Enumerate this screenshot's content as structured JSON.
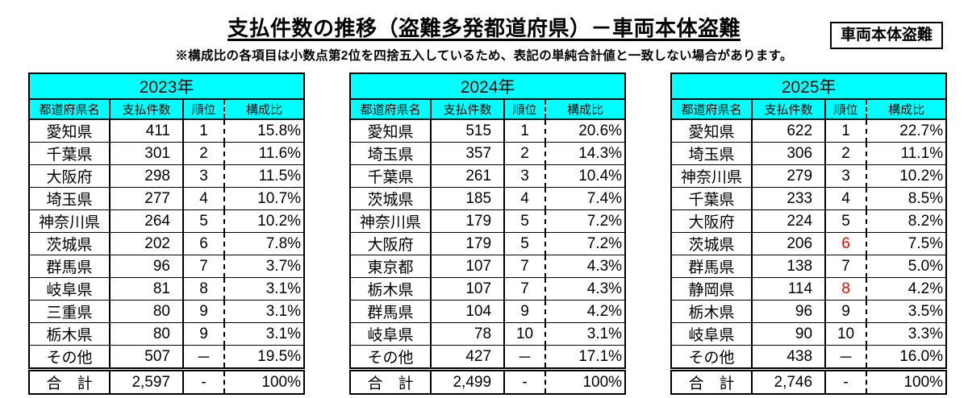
{
  "page": {
    "title": "支払件数の推移（盗難多発都道府県）－車両本体盗難",
    "tag_box": "車両本体盗難",
    "note": "※構成比の各項目は小数点第2位を四捨五入しているため、表記の単純合計値と一致しない場合があります。"
  },
  "colors": {
    "header_bg": "#00ffff",
    "rank_highlight": "#ff0000",
    "border": "#000000"
  },
  "columns": [
    "都道府県名",
    "支払件数",
    "順位",
    "構成比"
  ],
  "tables": [
    {
      "year": "2023年",
      "rows": [
        {
          "pref": "愛知県",
          "count": "411",
          "rank": "1",
          "share": "15.8%"
        },
        {
          "pref": "千葉県",
          "count": "301",
          "rank": "2",
          "share": "11.6%"
        },
        {
          "pref": "大阪府",
          "count": "298",
          "rank": "3",
          "share": "11.5%"
        },
        {
          "pref": "埼玉県",
          "count": "277",
          "rank": "4",
          "share": "10.7%"
        },
        {
          "pref": "神奈川県",
          "count": "264",
          "rank": "5",
          "share": "10.2%"
        },
        {
          "pref": "茨城県",
          "count": "202",
          "rank": "6",
          "share": "7.8%"
        },
        {
          "pref": "群馬県",
          "count": "96",
          "rank": "7",
          "share": "3.7%"
        },
        {
          "pref": "岐阜県",
          "count": "81",
          "rank": "8",
          "share": "3.1%"
        },
        {
          "pref": "三重県",
          "count": "80",
          "rank": "9",
          "share": "3.1%"
        },
        {
          "pref": "栃木県",
          "count": "80",
          "rank": "9",
          "share": "3.1%"
        },
        {
          "pref": "その他",
          "count": "507",
          "rank": "－",
          "share": "19.5%"
        }
      ],
      "total": {
        "pref": "合　計",
        "count": "2,597",
        "rank": "-",
        "share": "100%"
      }
    },
    {
      "year": "2024年",
      "rows": [
        {
          "pref": "愛知県",
          "count": "515",
          "rank": "1",
          "share": "20.6%"
        },
        {
          "pref": "埼玉県",
          "count": "357",
          "rank": "2",
          "share": "14.3%"
        },
        {
          "pref": "千葉県",
          "count": "261",
          "rank": "3",
          "share": "10.4%"
        },
        {
          "pref": "茨城県",
          "count": "185",
          "rank": "4",
          "share": "7.4%"
        },
        {
          "pref": "神奈川県",
          "count": "179",
          "rank": "5",
          "share": "7.2%"
        },
        {
          "pref": "大阪府",
          "count": "179",
          "rank": "5",
          "share": "7.2%"
        },
        {
          "pref": "東京都",
          "count": "107",
          "rank": "7",
          "share": "4.3%"
        },
        {
          "pref": "栃木県",
          "count": "107",
          "rank": "7",
          "share": "4.3%"
        },
        {
          "pref": "群馬県",
          "count": "104",
          "rank": "9",
          "share": "4.2%"
        },
        {
          "pref": "岐阜県",
          "count": "78",
          "rank": "10",
          "share": "3.1%"
        },
        {
          "pref": "その他",
          "count": "427",
          "rank": "－",
          "share": "17.1%"
        }
      ],
      "total": {
        "pref": "合　計",
        "count": "2,499",
        "rank": "-",
        "share": "100%"
      }
    },
    {
      "year": "2025年",
      "rows": [
        {
          "pref": "愛知県",
          "count": "622",
          "rank": "1",
          "share": "22.7%"
        },
        {
          "pref": "埼玉県",
          "count": "306",
          "rank": "2",
          "share": "11.1%"
        },
        {
          "pref": "神奈川県",
          "count": "279",
          "rank": "3",
          "share": "10.2%"
        },
        {
          "pref": "千葉県",
          "count": "233",
          "rank": "4",
          "share": "8.5%"
        },
        {
          "pref": "大阪府",
          "count": "224",
          "rank": "5",
          "share": "8.2%"
        },
        {
          "pref": "茨城県",
          "count": "206",
          "rank": "6",
          "rank_red": true,
          "share": "7.5%"
        },
        {
          "pref": "群馬県",
          "count": "138",
          "rank": "7",
          "share": "5.0%"
        },
        {
          "pref": "静岡県",
          "count": "114",
          "rank": "8",
          "rank_red": true,
          "share": "4.2%"
        },
        {
          "pref": "栃木県",
          "count": "96",
          "rank": "9",
          "share": "3.5%"
        },
        {
          "pref": "岐阜県",
          "count": "90",
          "rank": "10",
          "share": "3.3%"
        },
        {
          "pref": "その他",
          "count": "438",
          "rank": "－",
          "share": "16.0%"
        }
      ],
      "total": {
        "pref": "合　計",
        "count": "2,746",
        "rank": "-",
        "share": "100%"
      }
    }
  ]
}
